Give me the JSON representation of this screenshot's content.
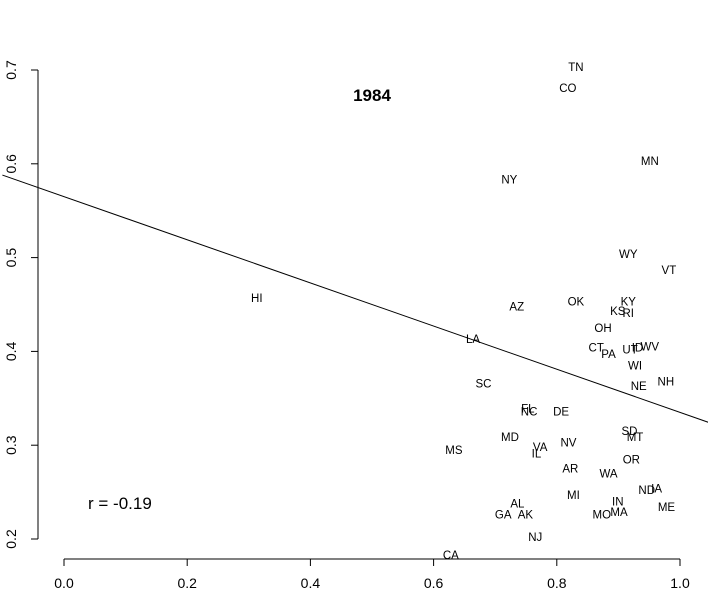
{
  "chart_data": {
    "type": "scatter",
    "title": "1984",
    "annotation": "r = -0.19",
    "xlabel": "",
    "ylabel": "",
    "xlim": [
      0.0,
      1.0
    ],
    "ylim": [
      0.2,
      0.7
    ],
    "x_ticks": [
      "0.0",
      "0.2",
      "0.4",
      "0.6",
      "0.8",
      "1.0"
    ],
    "y_ticks": [
      "0.2",
      "0.3",
      "0.4",
      "0.5",
      "0.6",
      "0.7"
    ],
    "grid": false,
    "regression_line": {
      "intercept": 0.565,
      "slope": -0.23
    },
    "points": [
      {
        "label": "TN",
        "x": 0.831,
        "y": 0.703
      },
      {
        "label": "CO",
        "x": 0.818,
        "y": 0.681
      },
      {
        "label": "MN",
        "x": 0.951,
        "y": 0.603
      },
      {
        "label": "NY",
        "x": 0.723,
        "y": 0.583
      },
      {
        "label": "WY",
        "x": 0.916,
        "y": 0.504
      },
      {
        "label": "VT",
        "x": 0.982,
        "y": 0.487
      },
      {
        "label": "HI",
        "x": 0.313,
        "y": 0.457
      },
      {
        "label": "OK",
        "x": 0.831,
        "y": 0.453
      },
      {
        "label": "KY",
        "x": 0.916,
        "y": 0.453
      },
      {
        "label": "AZ",
        "x": 0.735,
        "y": 0.448
      },
      {
        "label": "KS",
        "x": 0.899,
        "y": 0.443
      },
      {
        "label": "RI",
        "x": 0.916,
        "y": 0.441
      },
      {
        "label": "OH",
        "x": 0.875,
        "y": 0.425
      },
      {
        "label": "LA",
        "x": 0.664,
        "y": 0.413
      },
      {
        "label": "WV",
        "x": 0.951,
        "y": 0.405
      },
      {
        "label": "ID",
        "x": 0.931,
        "y": 0.404
      },
      {
        "label": "CT",
        "x": 0.864,
        "y": 0.404
      },
      {
        "label": "UT",
        "x": 0.919,
        "y": 0.402
      },
      {
        "label": "PA",
        "x": 0.884,
        "y": 0.397
      },
      {
        "label": "WI",
        "x": 0.927,
        "y": 0.385
      },
      {
        "label": "NH",
        "x": 0.977,
        "y": 0.368
      },
      {
        "label": "SC",
        "x": 0.681,
        "y": 0.366
      },
      {
        "label": "NE",
        "x": 0.933,
        "y": 0.363
      },
      {
        "label": "FL",
        "x": 0.753,
        "y": 0.339
      },
      {
        "label": "NC",
        "x": 0.755,
        "y": 0.336
      },
      {
        "label": "DE",
        "x": 0.807,
        "y": 0.336
      },
      {
        "label": "SD",
        "x": 0.918,
        "y": 0.315
      },
      {
        "label": "MT",
        "x": 0.927,
        "y": 0.309
      },
      {
        "label": "MD",
        "x": 0.724,
        "y": 0.309
      },
      {
        "label": "NV",
        "x": 0.819,
        "y": 0.303
      },
      {
        "label": "VA",
        "x": 0.773,
        "y": 0.298
      },
      {
        "label": "MS",
        "x": 0.633,
        "y": 0.295
      },
      {
        "label": "IL",
        "x": 0.767,
        "y": 0.291
      },
      {
        "label": "OR",
        "x": 0.921,
        "y": 0.285
      },
      {
        "label": "AR",
        "x": 0.822,
        "y": 0.275
      },
      {
        "label": "WA",
        "x": 0.884,
        "y": 0.27
      },
      {
        "label": "IA",
        "x": 0.962,
        "y": 0.254
      },
      {
        "label": "ND",
        "x": 0.946,
        "y": 0.252
      },
      {
        "label": "MI",
        "x": 0.827,
        "y": 0.247
      },
      {
        "label": "IN",
        "x": 0.899,
        "y": 0.24
      },
      {
        "label": "AL",
        "x": 0.736,
        "y": 0.238
      },
      {
        "label": "ME",
        "x": 0.978,
        "y": 0.234
      },
      {
        "label": "MA",
        "x": 0.901,
        "y": 0.229
      },
      {
        "label": "MO",
        "x": 0.873,
        "y": 0.226
      },
      {
        "label": "GA",
        "x": 0.713,
        "y": 0.226
      },
      {
        "label": "AK",
        "x": 0.749,
        "y": 0.226
      },
      {
        "label": "NJ",
        "x": 0.765,
        "y": 0.202
      },
      {
        "label": "CA",
        "x": 0.628,
        "y": 0.183
      }
    ]
  }
}
